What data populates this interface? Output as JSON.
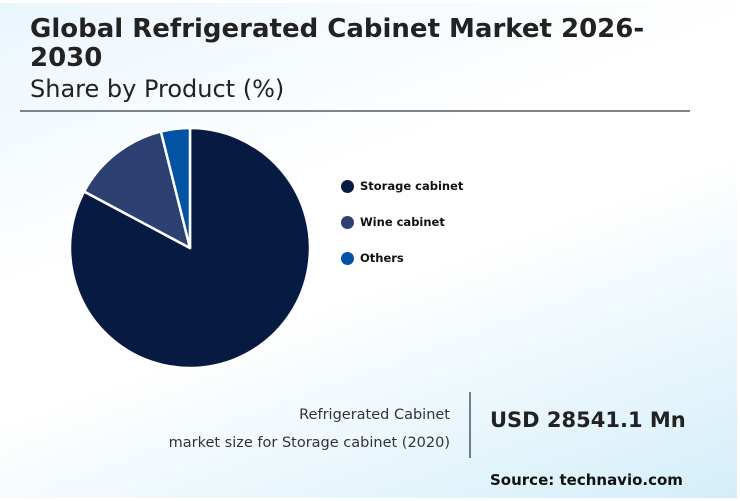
{
  "header": {
    "title": "Global Refrigerated Cabinet Market 2026-2030",
    "subtitle": "Share by Product (%)"
  },
  "legend": [
    {
      "label": "Storage cabinet",
      "color": "#071b42"
    },
    {
      "label": "Wine cabinet",
      "color": "#2c4172"
    },
    {
      "label": "Others",
      "color": "#0353a4"
    }
  ],
  "callout": {
    "line1": "Refrigerated Cabinet",
    "line2": "market size for Storage cabinet (2020)",
    "value": "USD 28541.1 Mn"
  },
  "source": "Source: technavio.com",
  "chart_data": {
    "type": "pie",
    "title": "Global Refrigerated Cabinet Market 2026-2030",
    "subtitle": "Share by Product (%)",
    "categories": [
      "Storage cabinet",
      "Wine cabinet",
      "Others"
    ],
    "values": [
      82.8,
      13.3,
      3.9
    ],
    "colors": [
      "#071b42",
      "#2c4172",
      "#0353a4"
    ],
    "start_angle": "12 o'clock, clockwise",
    "legend_position": "right",
    "annotation": "Refrigerated Cabinet market size for Storage cabinet (2020): USD 28541.1 Mn"
  }
}
